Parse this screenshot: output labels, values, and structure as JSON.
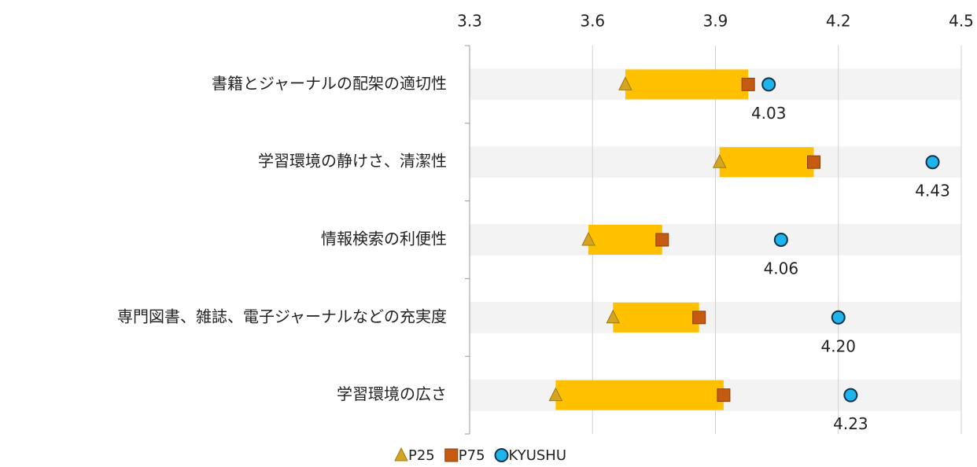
{
  "chart_data": {
    "type": "range",
    "categories": [
      "書籍とジャーナルの配架の適切性",
      "学習環境の静けさ、清潔性",
      "情報検索の利便性",
      "専門図書、雑誌、電子ジャーナルなどの充実度",
      "学習環境の広さ"
    ],
    "series": [
      {
        "name": "P25",
        "color": "#d4a520",
        "marker": "triangle",
        "values": [
          3.68,
          3.91,
          3.59,
          3.65,
          3.51
        ]
      },
      {
        "name": "P75",
        "color": "#c55a11",
        "marker": "square",
        "values": [
          3.98,
          4.14,
          3.77,
          3.86,
          3.92
        ]
      },
      {
        "name": "KYUSHU",
        "color": "#1fb4ec",
        "marker": "circle",
        "values": [
          4.03,
          4.43,
          4.06,
          4.2,
          4.23
        ],
        "value_labels": [
          "4.03",
          "4.43",
          "4.06",
          "4.20",
          "4.23"
        ]
      }
    ],
    "bar_color": "#ffc000",
    "xlim": [
      3.3,
      4.5
    ],
    "xticks": [
      3.3,
      3.6,
      3.9,
      4.2,
      4.5
    ],
    "grid": true,
    "legend": "bottom"
  }
}
